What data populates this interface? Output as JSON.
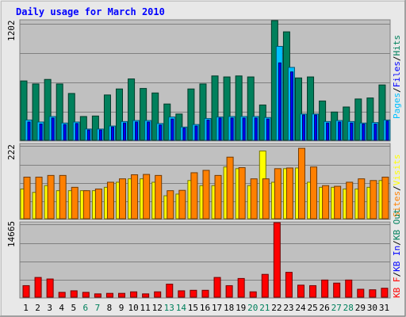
{
  "title": "Daily usage for March 2010",
  "colors": {
    "background": "#e8e8e8",
    "plot_bg": "#c0c0c0",
    "title": "#0000ff",
    "hits": "#00805c",
    "files": "#0000ff",
    "pages": "#00c0ff",
    "visits": "#ffff00",
    "sites": "#ff8000",
    "kbin": "#0000ff",
    "kbout": "#00805c",
    "kbf": "#ff0000",
    "weekend_day": "#00805c",
    "weekday": "#000000"
  },
  "chart_data": [
    {
      "type": "bar",
      "panel": "hits-files-pages",
      "ymax_label": "1202",
      "ylim": [
        0,
        1202
      ],
      "legend": [
        "Pages",
        "Files",
        "Hits"
      ],
      "categories": [
        "1",
        "2",
        "3",
        "4",
        "5",
        "6",
        "7",
        "8",
        "9",
        "10",
        "11",
        "12",
        "13",
        "14",
        "15",
        "16",
        "17",
        "18",
        "19",
        "20",
        "21",
        "22",
        "23",
        "24",
        "25",
        "26",
        "27",
        "28",
        "29",
        "30",
        "31"
      ],
      "series": [
        {
          "name": "Hits",
          "values": [
            600,
            570,
            615,
            570,
            475,
            245,
            250,
            460,
            520,
            620,
            525,
            480,
            370,
            270,
            520,
            570,
            650,
            640,
            650,
            640,
            360,
            1202,
            1090,
            630,
            640,
            400,
            290,
            340,
            420,
            430,
            560
          ]
        },
        {
          "name": "Files",
          "values": [
            190,
            170,
            230,
            165,
            175,
            110,
            110,
            140,
            180,
            190,
            190,
            160,
            220,
            130,
            150,
            210,
            230,
            230,
            230,
            230,
            220,
            780,
            690,
            260,
            260,
            180,
            190,
            180,
            170,
            170,
            200
          ]
        },
        {
          "name": "Pages",
          "values": [
            210,
            190,
            245,
            180,
            190,
            120,
            120,
            150,
            195,
            205,
            205,
            175,
            240,
            140,
            165,
            225,
            240,
            245,
            245,
            245,
            235,
            945,
            735,
            270,
            270,
            195,
            205,
            195,
            180,
            185,
            210
          ]
        }
      ]
    },
    {
      "type": "bar",
      "panel": "visits-sites",
      "ymax_label": "222",
      "ylim": [
        0,
        222
      ],
      "legend": [
        "Sites",
        "Visits"
      ],
      "categories": [
        "1",
        "2",
        "3",
        "4",
        "5",
        "6",
        "7",
        "8",
        "9",
        "10",
        "11",
        "12",
        "13",
        "14",
        "15",
        "16",
        "17",
        "18",
        "19",
        "20",
        "21",
        "22",
        "23",
        "24",
        "25",
        "26",
        "27",
        "28",
        "29",
        "30",
        "31"
      ],
      "series": [
        {
          "name": "Visits",
          "values": [
            90,
            80,
            100,
            85,
            85,
            85,
            85,
            95,
            110,
            120,
            120,
            110,
            70,
            75,
            115,
            100,
            100,
            155,
            150,
            100,
            202,
            110,
            150,
            152,
            110,
            95,
            95,
            90,
            90,
            95,
            115
          ]
        },
        {
          "name": "Sites",
          "values": [
            125,
            125,
            130,
            130,
            95,
            85,
            90,
            110,
            120,
            132,
            133,
            130,
            85,
            86,
            138,
            145,
            130,
            184,
            153,
            120,
            120,
            150,
            152,
            210,
            155,
            100,
            98,
            110,
            120,
            115,
            125
          ]
        }
      ]
    },
    {
      "type": "bar",
      "panel": "kbytes",
      "ymax_label": "14665",
      "ylim": [
        0,
        14665
      ],
      "legend": [
        "KB F",
        "KB In",
        "KB Out"
      ],
      "categories": [
        "1",
        "2",
        "3",
        "4",
        "5",
        "6",
        "7",
        "8",
        "9",
        "10",
        "11",
        "12",
        "13",
        "14",
        "15",
        "16",
        "17",
        "18",
        "19",
        "20",
        "21",
        "22",
        "23",
        "24",
        "25",
        "26",
        "27",
        "28",
        "29",
        "30",
        "31"
      ],
      "series": [
        {
          "name": "KB F",
          "values": [
            2400,
            4000,
            3700,
            1100,
            1400,
            1100,
            800,
            900,
            900,
            1200,
            800,
            1200,
            2700,
            1400,
            1500,
            1500,
            4000,
            2400,
            3800,
            1200,
            4600,
            14665,
            5000,
            2500,
            2400,
            3500,
            2900,
            3500,
            1700,
            1600,
            1900
          ]
        }
      ]
    }
  ],
  "day_labels": [
    "1",
    "2",
    "3",
    "4",
    "5",
    "6",
    "7",
    "8",
    "9",
    "10",
    "11",
    "12",
    "13",
    "14",
    "15",
    "16",
    "17",
    "18",
    "19",
    "20",
    "21",
    "22",
    "23",
    "24",
    "25",
    "26",
    "27",
    "28",
    "29",
    "30",
    "31"
  ],
  "weekend_days": [
    "6",
    "7",
    "13",
    "14",
    "20",
    "21",
    "27",
    "28"
  ]
}
